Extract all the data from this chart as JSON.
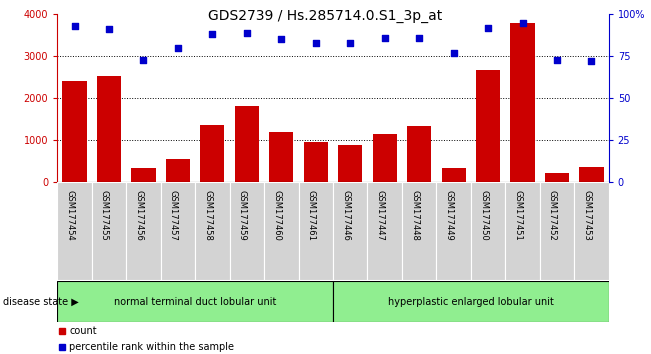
{
  "title": "GDS2739 / Hs.285714.0.S1_3p_at",
  "samples": [
    "GSM177454",
    "GSM177455",
    "GSM177456",
    "GSM177457",
    "GSM177458",
    "GSM177459",
    "GSM177460",
    "GSM177461",
    "GSM177446",
    "GSM177447",
    "GSM177448",
    "GSM177449",
    "GSM177450",
    "GSM177451",
    "GSM177452",
    "GSM177453"
  ],
  "counts": [
    2400,
    2520,
    340,
    560,
    1370,
    1810,
    1190,
    960,
    880,
    1150,
    1350,
    340,
    2660,
    3780,
    230,
    360
  ],
  "percentiles": [
    93,
    91,
    73,
    80,
    88,
    89,
    85,
    83,
    83,
    86,
    86,
    77,
    92,
    95,
    73,
    72
  ],
  "group1_label": "normal terminal duct lobular unit",
  "group2_label": "hyperplastic enlarged lobular unit",
  "group1_count": 8,
  "group2_count": 8,
  "bar_color": "#cc0000",
  "dot_color": "#0000cc",
  "left_ylabel_color": "#cc0000",
  "right_ylabel_color": "#0000cc",
  "ylim_left": [
    0,
    4000
  ],
  "ylim_right": [
    0,
    100
  ],
  "yticks_left": [
    0,
    1000,
    2000,
    3000,
    4000
  ],
  "yticks_right": [
    0,
    25,
    50,
    75,
    100
  ],
  "ytick_labels_right": [
    "0",
    "25",
    "50",
    "75",
    "100%"
  ],
  "grid_values": [
    1000,
    2000,
    3000
  ],
  "group1_color": "#90ee90",
  "group2_color": "#90ee90",
  "disease_state_label": "disease state",
  "legend_count_label": "count",
  "legend_percentile_label": "percentile rank within the sample",
  "title_fontsize": 10,
  "bar_width": 0.7,
  "label_box_color": "#d3d3d3",
  "background_color": "#ffffff"
}
